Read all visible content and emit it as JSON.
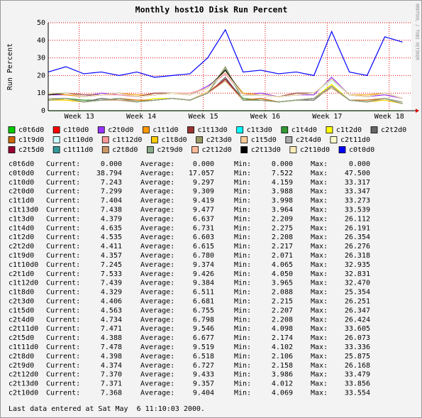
{
  "chart_data": {
    "type": "line",
    "title": "Monthly host10 Disk Run Percent",
    "y_label": "Run Percent",
    "credit": "RRDTOOL / TOBI OETIKER",
    "x": [
      0,
      2,
      4,
      6,
      8,
      10,
      12,
      14,
      16,
      18,
      20,
      22,
      24,
      26,
      28,
      30,
      32,
      34,
      36,
      38,
      40
    ],
    "xlim": [
      0,
      41
    ],
    "xticks": [
      {
        "value": 3.5,
        "label": "Week 13"
      },
      {
        "value": 10.5,
        "label": "Week 14"
      },
      {
        "value": 17.5,
        "label": "Week 15"
      },
      {
        "value": 24.5,
        "label": "Week 16"
      },
      {
        "value": 31.5,
        "label": "Week 17"
      },
      {
        "value": 38.5,
        "label": "Week 18"
      }
    ],
    "ylim": [
      0,
      50
    ],
    "yticks": [
      0,
      10,
      20,
      30,
      40,
      50
    ],
    "grid": true,
    "series": [
      {
        "name": "c0t6d0",
        "color": "#00cc00",
        "values": [
          0,
          0,
          0,
          0,
          0,
          0,
          0,
          0,
          0,
          0,
          0,
          0,
          0,
          0,
          0,
          0,
          0,
          0,
          0,
          0,
          0
        ]
      },
      {
        "name": "c1t0d0",
        "color": "#ff0000",
        "values": [
          9,
          10,
          8,
          9,
          10,
          8,
          9,
          10,
          9,
          13,
          22,
          9,
          9,
          8,
          9,
          10,
          18,
          9,
          8,
          10,
          7
        ]
      },
      {
        "name": "c2t0d0",
        "color": "#9933ff",
        "values": [
          9,
          9,
          8,
          10,
          9,
          8,
          9,
          10,
          9,
          14,
          21,
          9,
          10,
          8,
          9,
          9,
          19,
          9,
          8,
          9,
          7
        ]
      },
      {
        "name": "c1t1d0",
        "color": "#ff9900",
        "values": [
          10,
          9,
          8,
          9,
          10,
          9,
          9,
          10,
          9,
          13,
          22,
          10,
          9,
          8,
          9,
          10,
          18,
          9,
          9,
          10,
          7
        ]
      },
      {
        "name": "c1t13d0",
        "color": "#993333",
        "values": [
          9,
          10,
          9,
          9,
          10,
          8,
          10,
          10,
          9,
          13,
          23,
          9,
          9,
          8,
          10,
          10,
          18,
          9,
          8,
          10,
          7
        ]
      },
      {
        "name": "c1t3d0",
        "color": "#00ffff",
        "values": [
          6,
          7,
          5,
          6,
          7,
          5,
          6,
          7,
          6,
          10,
          18,
          6,
          6,
          5,
          6,
          7,
          14,
          6,
          5,
          7,
          4
        ]
      },
      {
        "name": "c1t4d0",
        "color": "#339933",
        "values": [
          6,
          7,
          6,
          6,
          7,
          5,
          6,
          7,
          6,
          10,
          18,
          7,
          6,
          5,
          6,
          7,
          14,
          6,
          5,
          7,
          5
        ]
      },
      {
        "name": "c1t2d0",
        "color": "#ffff00",
        "values": [
          7,
          6,
          5,
          6,
          7,
          5,
          7,
          7,
          6,
          11,
          18,
          6,
          6,
          5,
          6,
          7,
          15,
          6,
          5,
          7,
          5
        ]
      },
      {
        "name": "c2t2d0",
        "color": "#666666",
        "values": [
          6,
          7,
          5,
          7,
          6,
          5,
          6,
          7,
          6,
          10,
          19,
          6,
          6,
          5,
          6,
          6,
          14,
          6,
          5,
          7,
          4
        ]
      },
      {
        "name": "c1t9d0",
        "color": "#cc6600",
        "values": [
          6,
          7,
          5,
          6,
          7,
          6,
          6,
          7,
          6,
          10,
          18,
          6,
          7,
          5,
          6,
          7,
          14,
          6,
          6,
          7,
          4
        ]
      },
      {
        "name": "c1t10d0",
        "color": "#ccffff",
        "values": [
          9,
          10,
          8,
          9,
          10,
          8,
          9,
          10,
          9,
          13,
          22,
          9,
          9,
          8,
          9,
          10,
          17,
          9,
          8,
          10,
          7
        ]
      },
      {
        "name": "c1t12d0",
        "color": "#ff9999",
        "values": [
          9,
          10,
          8,
          9,
          9,
          8,
          9,
          10,
          10,
          13,
          21,
          9,
          9,
          8,
          9,
          10,
          18,
          9,
          8,
          10,
          7
        ]
      },
      {
        "name": "c1t8d0",
        "color": "#ffcc00",
        "values": [
          6,
          6,
          5,
          6,
          7,
          5,
          6,
          7,
          6,
          10,
          17,
          6,
          6,
          5,
          6,
          7,
          14,
          6,
          5,
          6,
          4
        ]
      },
      {
        "name": "c2t3d0",
        "color": "#999966",
        "values": [
          6,
          7,
          5,
          6,
          7,
          5,
          6,
          7,
          6,
          10,
          25,
          6,
          6,
          5,
          6,
          7,
          14,
          6,
          5,
          7,
          4
        ]
      },
      {
        "name": "c1t5d0",
        "color": "#ffcc99",
        "values": [
          6,
          7,
          5,
          6,
          7,
          5,
          6,
          7,
          6,
          11,
          18,
          6,
          6,
          5,
          6,
          7,
          14,
          6,
          5,
          7,
          5
        ]
      },
      {
        "name": "c2t4d0",
        "color": "#aaaaaa",
        "values": [
          7,
          7,
          5,
          6,
          7,
          5,
          6,
          7,
          6,
          10,
          24,
          6,
          6,
          5,
          6,
          7,
          14,
          6,
          5,
          7,
          5
        ]
      },
      {
        "name": "c2t11d0",
        "color": "#ffffcc",
        "values": [
          10,
          10,
          8,
          9,
          10,
          8,
          9,
          10,
          9,
          13,
          23,
          9,
          9,
          8,
          9,
          10,
          18,
          9,
          8,
          10,
          7
        ]
      },
      {
        "name": "c2t5d0",
        "color": "#990033",
        "values": [
          6,
          7,
          5,
          6,
          7,
          5,
          6,
          7,
          6,
          10,
          18,
          6,
          6,
          5,
          6,
          7,
          14,
          6,
          5,
          7,
          4
        ]
      },
      {
        "name": "c1t11d0",
        "color": "#339999",
        "values": [
          10,
          10,
          8,
          9,
          10,
          8,
          9,
          10,
          9,
          13,
          22,
          9,
          9,
          8,
          9,
          10,
          18,
          9,
          8,
          10,
          7
        ]
      },
      {
        "name": "c2t8d0",
        "color": "#cc9966",
        "values": [
          6,
          7,
          5,
          6,
          6,
          5,
          6,
          7,
          6,
          10,
          17,
          6,
          6,
          5,
          6,
          7,
          13,
          6,
          5,
          7,
          4
        ]
      },
      {
        "name": "c2t9d0",
        "color": "#88aa88",
        "values": [
          6,
          7,
          5,
          6,
          7,
          5,
          6,
          7,
          6,
          10,
          24,
          6,
          6,
          5,
          6,
          7,
          14,
          6,
          5,
          7,
          4
        ]
      },
      {
        "name": "c2t12d0",
        "color": "#ffbb99",
        "values": [
          9,
          10,
          8,
          9,
          10,
          8,
          9,
          10,
          9,
          13,
          22,
          9,
          9,
          8,
          9,
          10,
          18,
          9,
          8,
          10,
          7
        ]
      },
      {
        "name": "c2t13d0",
        "color": "#000000",
        "values": [
          9,
          10,
          8,
          9,
          10,
          8,
          9,
          10,
          9,
          13,
          23,
          9,
          9,
          8,
          9,
          10,
          18,
          9,
          8,
          10,
          7
        ]
      },
      {
        "name": "c2t10d0",
        "color": "#ffeebb",
        "values": [
          10,
          10,
          8,
          9,
          10,
          8,
          9,
          10,
          9,
          13,
          22,
          9,
          9,
          8,
          9,
          10,
          18,
          9,
          8,
          10,
          7
        ]
      },
      {
        "name": "c0t0d0",
        "color": "#0000ff",
        "values": [
          22,
          25,
          21,
          22,
          20,
          22,
          19,
          20,
          21,
          30,
          46,
          22,
          23,
          21,
          22,
          20,
          45,
          22,
          20,
          42,
          39
        ]
      }
    ],
    "stat_labels": [
      "Current:",
      "Average:",
      "Min:",
      "Max:"
    ],
    "stats": [
      [
        "c0t6d0",
        "0.000",
        "0.000",
        "0.000",
        "0.000"
      ],
      [
        "c0t0d0",
        "38.794",
        "17.057",
        "7.522",
        "47.500"
      ],
      [
        "c1t0d0",
        "7.243",
        "9.297",
        "4.159",
        "33.317"
      ],
      [
        "c2t0d0",
        "7.299",
        "9.309",
        "3.988",
        "33.347"
      ],
      [
        "c1t1d0",
        "7.404",
        "9.419",
        "3.998",
        "33.273"
      ],
      [
        "c1t13d0",
        "7.438",
        "9.477",
        "3.964",
        "33.539"
      ],
      [
        "c1t3d0",
        "4.379",
        "6.637",
        "2.209",
        "26.112"
      ],
      [
        "c1t4d0",
        "4.635",
        "6.731",
        "2.275",
        "26.191"
      ],
      [
        "c1t2d0",
        "4.535",
        "6.603",
        "2.208",
        "26.354"
      ],
      [
        "c2t2d0",
        "4.411",
        "6.615",
        "2.217",
        "26.276"
      ],
      [
        "c1t9d0",
        "4.357",
        "6.780",
        "2.071",
        "26.318"
      ],
      [
        "c1t10d0",
        "7.245",
        "9.374",
        "4.065",
        "32.935"
      ],
      [
        "c2t1d0",
        "7.533",
        "9.426",
        "4.050",
        "32.831"
      ],
      [
        "c1t12d0",
        "7.439",
        "9.384",
        "3.965",
        "32.470"
      ],
      [
        "c1t8d0",
        "4.329",
        "6.511",
        "2.088",
        "25.354"
      ],
      [
        "c2t3d0",
        "4.406",
        "6.681",
        "2.215",
        "26.251"
      ],
      [
        "c1t5d0",
        "4.563",
        "6.755",
        "2.207",
        "26.347"
      ],
      [
        "c2t4d0",
        "4.734",
        "6.798",
        "2.208",
        "26.424"
      ],
      [
        "c2t11d0",
        "7.471",
        "9.546",
        "4.098",
        "33.605"
      ],
      [
        "c2t5d0",
        "4.388",
        "6.677",
        "2.174",
        "26.073"
      ],
      [
        "c1t11d0",
        "7.478",
        "9.519",
        "4.102",
        "33.336"
      ],
      [
        "c2t8d0",
        "4.398",
        "6.518",
        "2.106",
        "25.875"
      ],
      [
        "c2t9d0",
        "4.374",
        "6.727",
        "2.158",
        "26.168"
      ],
      [
        "c2t12d0",
        "7.370",
        "9.433",
        "3.986",
        "33.479"
      ],
      [
        "c2t13d0",
        "7.371",
        "9.357",
        "4.012",
        "33.856"
      ],
      [
        "c2t10d0",
        "7.368",
        "9.404",
        "4.069",
        "33.554"
      ]
    ],
    "footer": "Last data entered at Sat May  6 11:10:03 2000."
  }
}
